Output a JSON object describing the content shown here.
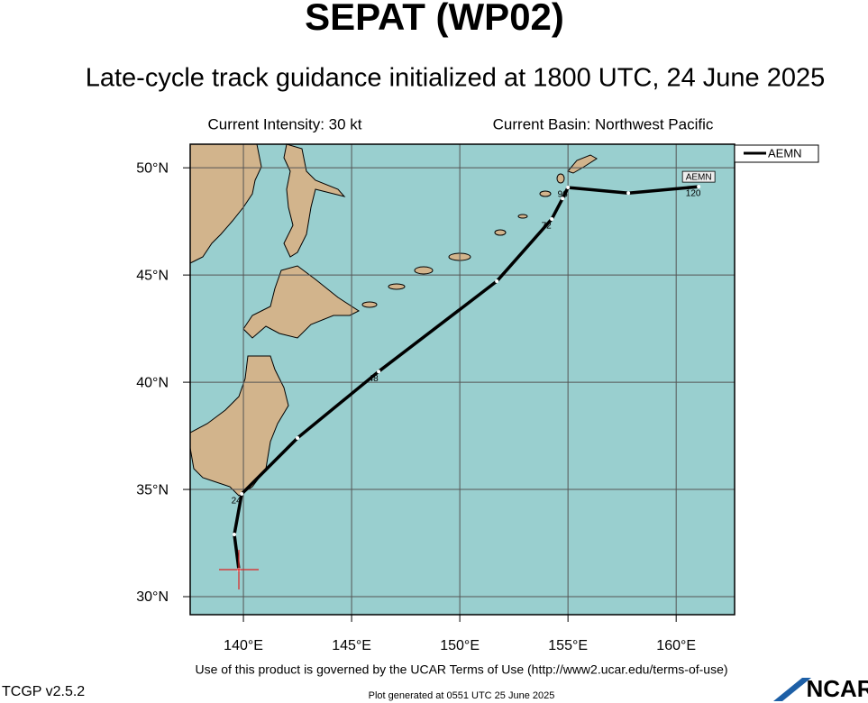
{
  "chart_data": {
    "type": "track",
    "title": "SEPAT (WP02)",
    "subtitle": "Late-cycle track guidance initialized at 1800 UTC, 24 June 2025",
    "intensity": "Current Intensity: 30 kt",
    "basin": "Current Basin: Northwest Pacific",
    "xlim": [
      137.54,
      162.7
    ],
    "ylim": [
      29.16,
      51.1
    ],
    "xticks": [
      {
        "value": 140,
        "label": "140°E"
      },
      {
        "value": 145,
        "label": "145°E"
      },
      {
        "value": 150,
        "label": "150°E"
      },
      {
        "value": 155,
        "label": "155°E"
      },
      {
        "value": 160,
        "label": "160°E"
      }
    ],
    "yticks": [
      {
        "value": 30,
        "label": "30°N"
      },
      {
        "value": 35,
        "label": "35°N"
      },
      {
        "value": 40,
        "label": "40°N"
      },
      {
        "value": 45,
        "label": "45°N"
      },
      {
        "value": 50,
        "label": "50°N"
      }
    ],
    "grid": true,
    "x": [
      139.79,
      139.58,
      139.92,
      142.5,
      146.25,
      151.71,
      154.25,
      154.75,
      155.0,
      157.79,
      161.04
    ],
    "series": [
      {
        "name": "AEMN",
        "color": "#000000",
        "values": [
          31.26,
          32.9,
          34.79,
          37.4,
          40.5,
          44.71,
          47.61,
          48.57,
          49.08,
          48.82,
          49.12
        ],
        "point_labels": [
          null,
          null,
          "24",
          null,
          "48",
          null,
          "72",
          null,
          "96",
          null,
          "120"
        ]
      }
    ],
    "current_position": {
      "lon": 139.79,
      "lat": 31.26,
      "color": "#e02020"
    },
    "terms": "Use of this product is governed by the UCAR Terms of Use (http://www2.ucar.edu/terms-of-use)",
    "version": "TCGP v2.5.2",
    "generated": "Plot generated at 0551 UTC   25 June 2025",
    "logo": "NCAR"
  }
}
